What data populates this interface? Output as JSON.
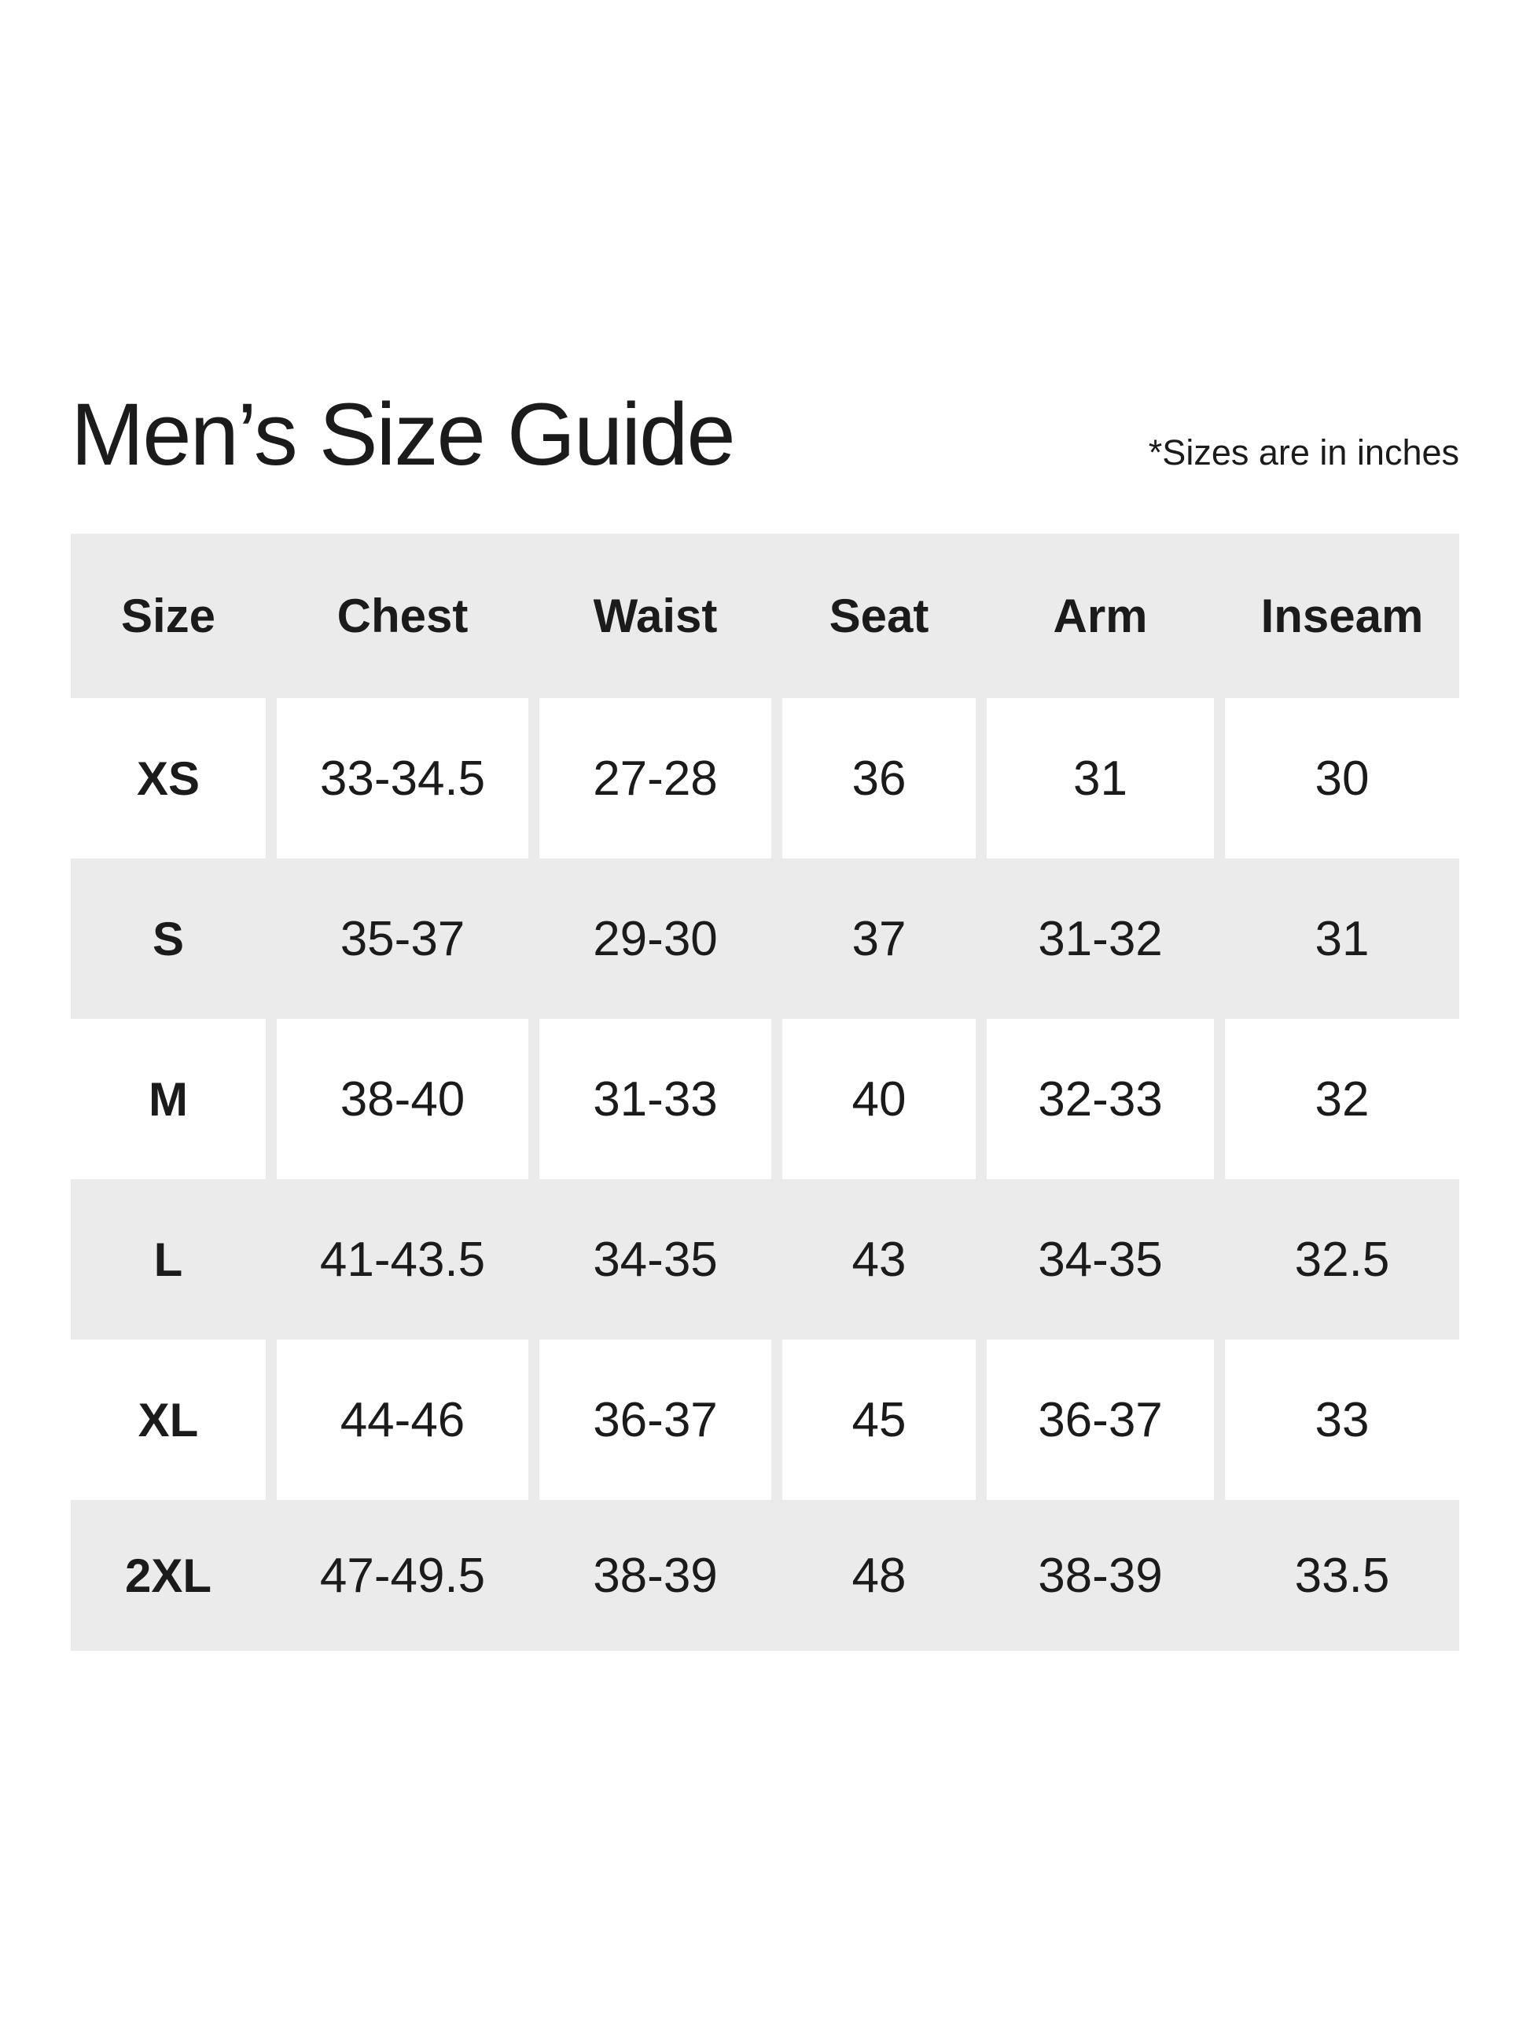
{
  "header": {
    "title": "Men’s Size Guide",
    "note": "*Sizes are in inches"
  },
  "size_table": {
    "columns": [
      "Size",
      "Chest",
      "Waist",
      "Seat",
      "Arm",
      "Inseam"
    ],
    "rows": [
      {
        "size": "XS",
        "chest": "33-34.5",
        "waist": "27-28",
        "seat": "36",
        "arm": "31",
        "inseam": "30"
      },
      {
        "size": "S",
        "chest": "35-37",
        "waist": "29-30",
        "seat": "37",
        "arm": "31-32",
        "inseam": "31"
      },
      {
        "size": "M",
        "chest": "38-40",
        "waist": "31-33",
        "seat": "40",
        "arm": "32-33",
        "inseam": "32"
      },
      {
        "size": "L",
        "chest": "41-43.5",
        "waist": "34-35",
        "seat": "43",
        "arm": "34-35",
        "inseam": "32.5"
      },
      {
        "size": "XL",
        "chest": "44-46",
        "waist": "36-37",
        "seat": "45",
        "arm": "36-37",
        "inseam": "33"
      },
      {
        "size": "2XL",
        "chest": "47-49.5",
        "waist": "38-39",
        "seat": "48",
        "arm": "38-39",
        "inseam": "33.5"
      }
    ]
  },
  "colors": {
    "band_gray": "#ebebeb",
    "text": "#1b1b1b",
    "background": "#ffffff"
  }
}
